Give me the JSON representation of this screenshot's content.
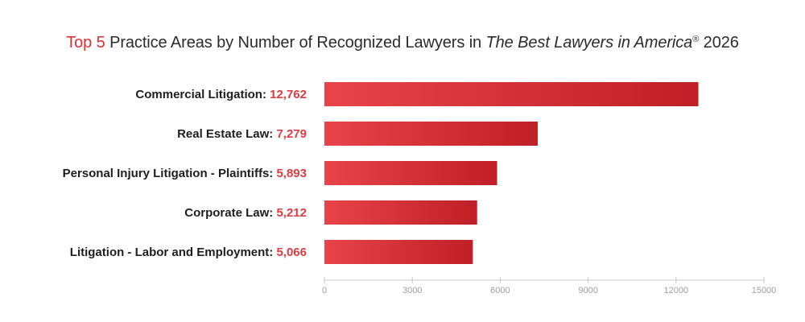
{
  "title": {
    "accent": "Top 5",
    "main": " Practice Areas by Number of Recognized Lawyers in ",
    "italic": "The Best Lawyers in America",
    "mark": "®",
    "year": " 2026"
  },
  "colors": {
    "accent": "#dc2f35",
    "bar_start": "#e8444a",
    "bar_end": "#bf1f26",
    "axis": "#c8c8c8"
  },
  "chart_data": {
    "type": "bar",
    "orientation": "horizontal",
    "title": "Top 5 Practice Areas by Number of Recognized Lawyers in The Best Lawyers in America® 2026",
    "categories": [
      "Commercial Litigation",
      "Real Estate Law",
      "Personal Injury Litigation - Plaintiffs",
      "Corporate Law",
      "Litigation - Labor and Employment"
    ],
    "value_labels": [
      "12,762",
      "7,279",
      "5,893",
      "5,212",
      "5,066"
    ],
    "values": [
      12762,
      7279,
      5893,
      5212,
      5066
    ],
    "xlim": [
      0,
      15000
    ],
    "xticks": [
      0,
      3000,
      6000,
      9000,
      12000,
      15000
    ],
    "xlabel": "",
    "ylabel": "",
    "grid": false,
    "legend": "none"
  }
}
